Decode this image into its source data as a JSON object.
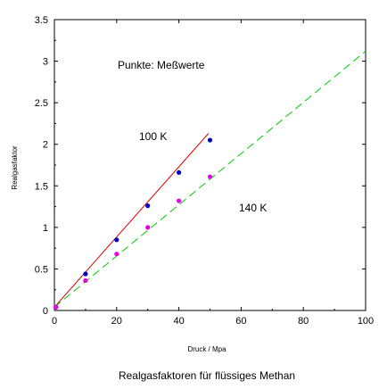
{
  "chart_data": {
    "type": "scatter",
    "title": "",
    "caption": "Realgasfaktoren für flüssiges Methan",
    "xlabel": "Druck / Mpa",
    "ylabel": "Realgasfaktor",
    "xlim": [
      0,
      100
    ],
    "ylim": [
      0,
      3.5
    ],
    "x_ticks": [
      "0",
      "20",
      "40",
      "60",
      "80",
      "100"
    ],
    "y_ticks": [
      "0",
      "0.5",
      "1",
      "1.5",
      "2",
      "2.5",
      "3",
      "3.5"
    ],
    "grid": false,
    "legend": "none",
    "annotations": {
      "points_note": "Punkte: Meßwerte",
      "label_100k": "100 K",
      "label_140k": "140 K"
    },
    "series": [
      {
        "name": "100 K",
        "color": "#0000cc",
        "points": [
          {
            "x": 0.5,
            "y": 0.04
          },
          {
            "x": 10,
            "y": 0.44
          },
          {
            "x": 20,
            "y": 0.85
          },
          {
            "x": 30,
            "y": 1.26
          },
          {
            "x": 40,
            "y": 1.66
          },
          {
            "x": 50,
            "y": 2.05
          }
        ],
        "fit_line": {
          "color": "#dd0000",
          "style": "solid",
          "x": [
            0,
            49.5
          ],
          "y": [
            0.04,
            2.13
          ]
        }
      },
      {
        "name": "140 K",
        "color": "#e600e6",
        "points": [
          {
            "x": 0.5,
            "y": 0.04
          },
          {
            "x": 10,
            "y": 0.36
          },
          {
            "x": 20,
            "y": 0.68
          },
          {
            "x": 30,
            "y": 1.0
          },
          {
            "x": 40,
            "y": 1.32
          },
          {
            "x": 50,
            "y": 1.61
          }
        ],
        "fit_line": {
          "color": "#00cc00",
          "style": "dashed",
          "x": [
            0,
            100
          ],
          "y": [
            0.04,
            3.12
          ]
        }
      }
    ]
  }
}
